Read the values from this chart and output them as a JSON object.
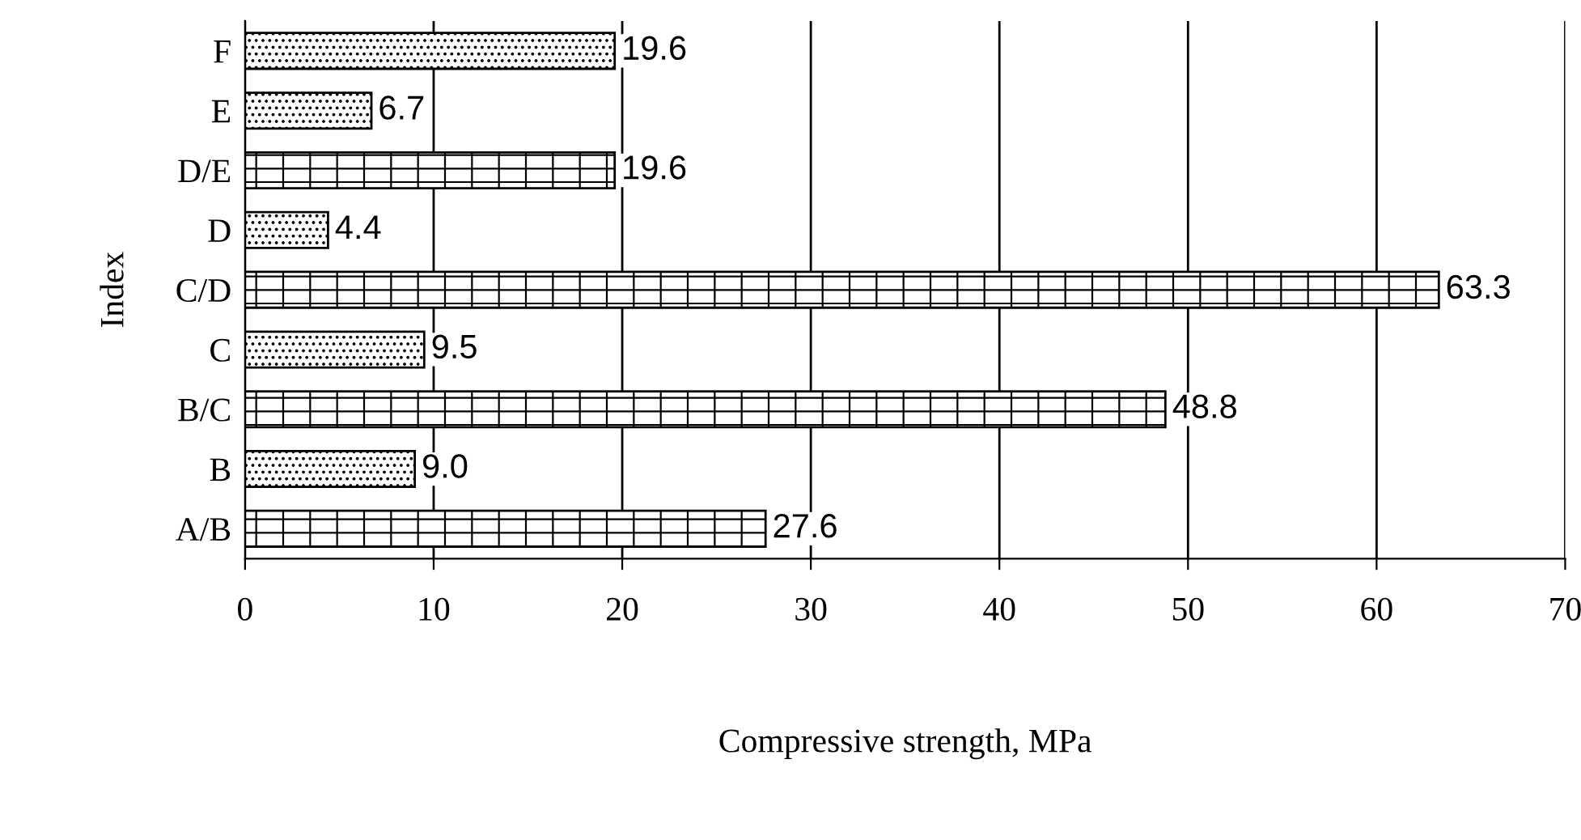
{
  "chart_data": {
    "type": "bar",
    "orientation": "horizontal",
    "categories": [
      "F",
      "E",
      "D/E",
      "D",
      "C/D",
      "C",
      "B/C",
      "B",
      "A/B"
    ],
    "series": [
      {
        "color": "#000000",
        "values": [
          19.6,
          6.7,
          null,
          4.4,
          null,
          9.5,
          null,
          9.0,
          null
        ],
        "value_labels": [
          "19.6",
          "6.7",
          null,
          "4.4",
          null,
          "9.5",
          null,
          "9.0",
          null
        ]
      },
      {
        "color": "#000000",
        "values": [
          null,
          null,
          19.6,
          null,
          63.3,
          null,
          48.8,
          null,
          27.6
        ],
        "value_labels": [
          null,
          null,
          "19.6",
          null,
          "63.3",
          null,
          "48.8",
          null,
          "27.6"
        ]
      }
    ],
    "xlabel": "Compressive strength, MPa",
    "ylabel": "Index",
    "xlim": [
      0,
      70
    ],
    "xticks": [
      0,
      10,
      20,
      30,
      40,
      50,
      60,
      70
    ],
    "grid": "x"
  }
}
